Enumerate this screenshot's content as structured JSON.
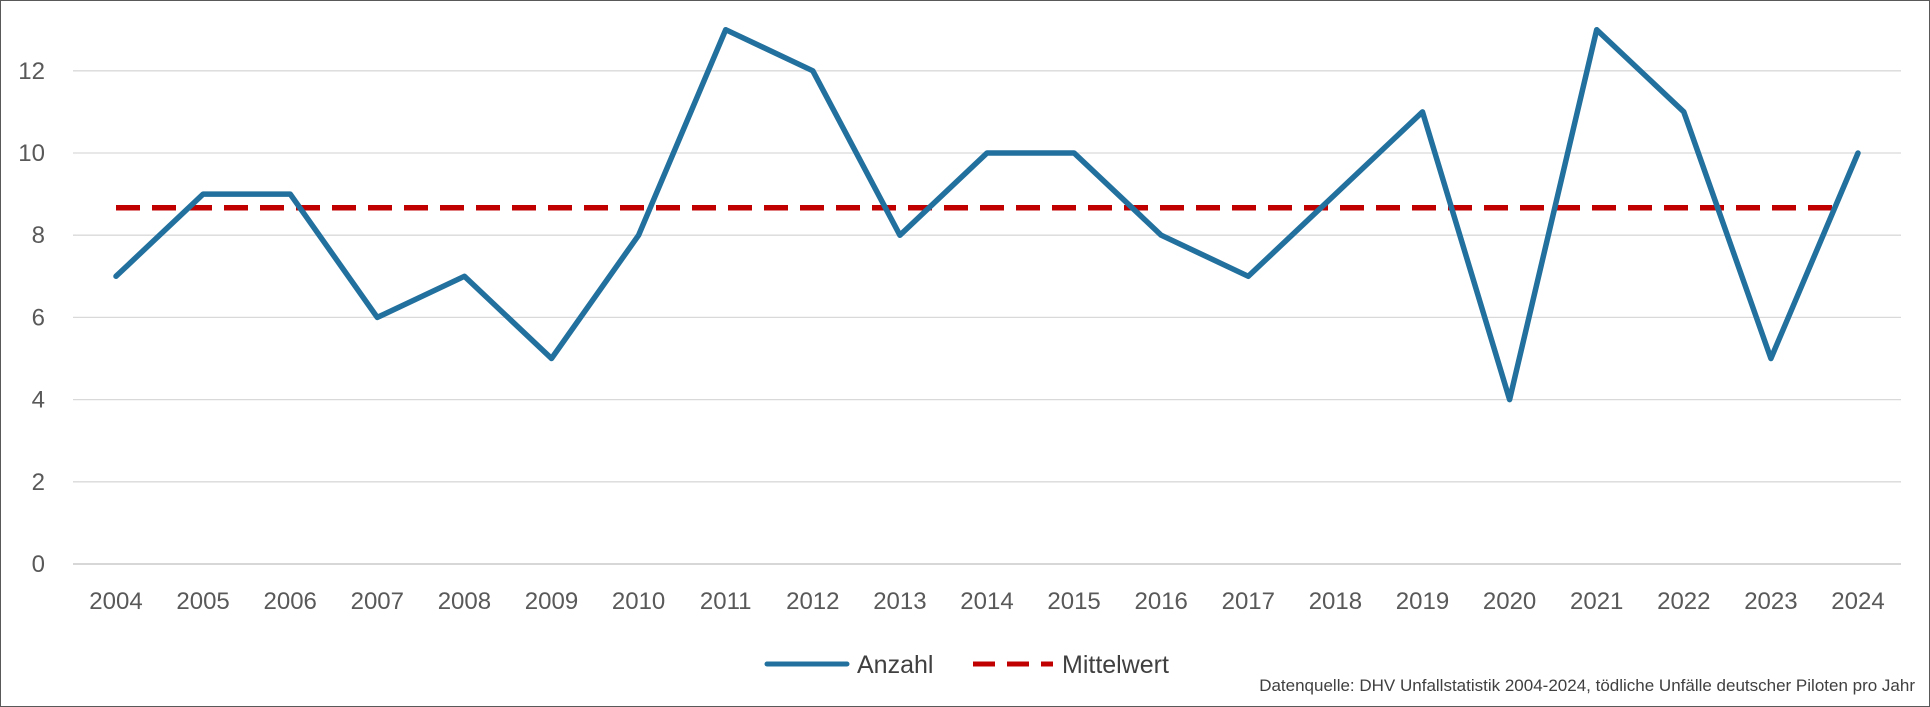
{
  "chart_data": {
    "type": "line",
    "title": "",
    "xlabel": "",
    "ylabel": "",
    "categories": [
      "2004",
      "2005",
      "2006",
      "2007",
      "2008",
      "2009",
      "2010",
      "2011",
      "2012",
      "2013",
      "2014",
      "2015",
      "2016",
      "2017",
      "2018",
      "2019",
      "2020",
      "2021",
      "2022",
      "2023",
      "2024"
    ],
    "ylim": [
      0,
      13
    ],
    "yticks": [
      "0",
      "2",
      "4",
      "6",
      "8",
      "10",
      "12"
    ],
    "grid": true,
    "legend_position": "bottom",
    "series": [
      {
        "name": "Anzahl",
        "color": "#22709D",
        "style": "solid",
        "values": [
          7,
          9,
          9,
          6,
          7,
          5,
          8,
          13,
          12,
          8,
          10,
          10,
          8,
          7,
          9,
          11,
          4,
          13,
          11,
          5,
          10
        ]
      },
      {
        "name": "Mittelwert",
        "color": "#C00000",
        "style": "dashed",
        "values": [
          8.67,
          8.67,
          8.67,
          8.67,
          8.67,
          8.67,
          8.67,
          8.67,
          8.67,
          8.67,
          8.67,
          8.67,
          8.67,
          8.67,
          8.67,
          8.67,
          8.67,
          8.67,
          8.67,
          8.67,
          8.67
        ]
      }
    ],
    "source_note": "Datenquelle: DHV Unfallstatistik 2004-2024, tödliche Unfälle deutscher Piloten pro Jahr"
  }
}
